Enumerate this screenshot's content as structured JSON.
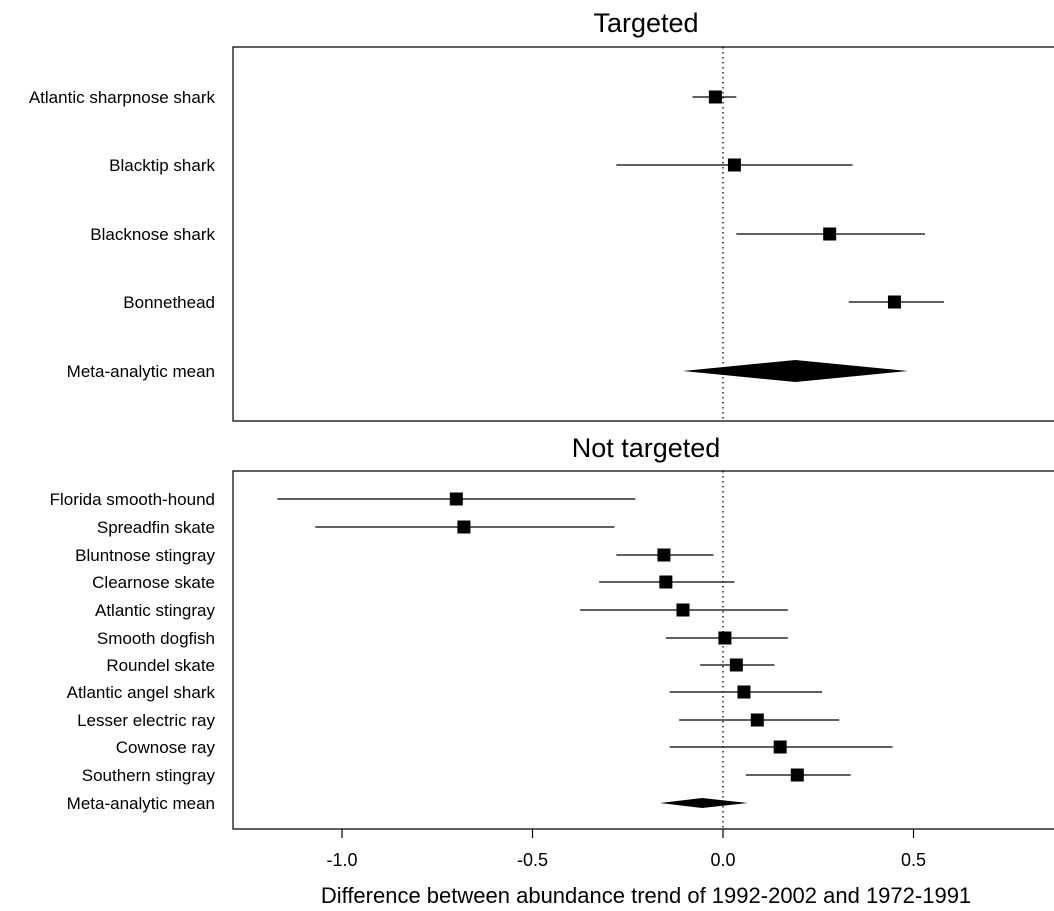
{
  "chart_data": {
    "type": "forest",
    "xlabel": "Difference between abundance trend of 1992-2002 and 1972-1991",
    "xlim": [
      -1.28,
      0.86
    ],
    "xticks": [
      -1.0,
      -0.5,
      0.0,
      0.5
    ],
    "xtick_labels": [
      "-1.0",
      "-0.5",
      "0.0",
      "0.5"
    ],
    "reference_line": 0,
    "panels": [
      {
        "title": "Targeted",
        "rows": [
          {
            "label": "Atlantic sharpnose shark",
            "estimate": -0.02,
            "lower": -0.08,
            "upper": 0.035
          },
          {
            "label": "Blacktip shark",
            "estimate": 0.03,
            "lower": -0.28,
            "upper": 0.34
          },
          {
            "label": "Blacknose shark",
            "estimate": 0.28,
            "lower": 0.035,
            "upper": 0.53
          },
          {
            "label": "Bonnethead",
            "estimate": 0.45,
            "lower": 0.33,
            "upper": 0.58
          },
          {
            "label": "Meta-analytic mean",
            "estimate": 0.19,
            "lower": -0.105,
            "upper": 0.485,
            "summary": true
          }
        ]
      },
      {
        "title": "Not targeted",
        "rows": [
          {
            "label": "Florida smooth-hound",
            "estimate": -0.7,
            "lower": -1.17,
            "upper": -0.23
          },
          {
            "label": "Spreadfin skate",
            "estimate": -0.68,
            "lower": -1.07,
            "upper": -0.285
          },
          {
            "label": "Bluntnose stingray",
            "estimate": -0.155,
            "lower": -0.28,
            "upper": -0.025
          },
          {
            "label": "Clearnose skate",
            "estimate": -0.15,
            "lower": -0.325,
            "upper": 0.03
          },
          {
            "label": "Atlantic stingray",
            "estimate": -0.105,
            "lower": -0.375,
            "upper": 0.17
          },
          {
            "label": "Smooth dogfish",
            "estimate": 0.005,
            "lower": -0.15,
            "upper": 0.17
          },
          {
            "label": "Roundel skate",
            "estimate": 0.035,
            "lower": -0.06,
            "upper": 0.135
          },
          {
            "label": "Atlantic angel shark",
            "estimate": 0.055,
            "lower": -0.14,
            "upper": 0.26
          },
          {
            "label": "Lesser electric ray",
            "estimate": 0.09,
            "lower": -0.115,
            "upper": 0.305
          },
          {
            "label": "Cownose ray",
            "estimate": 0.15,
            "lower": -0.14,
            "upper": 0.445
          },
          {
            "label": "Southern stingray",
            "estimate": 0.195,
            "lower": 0.06,
            "upper": 0.335
          },
          {
            "label": "Meta-analytic mean",
            "estimate": -0.055,
            "lower": -0.165,
            "upper": 0.065,
            "summary": true
          }
        ]
      }
    ]
  }
}
